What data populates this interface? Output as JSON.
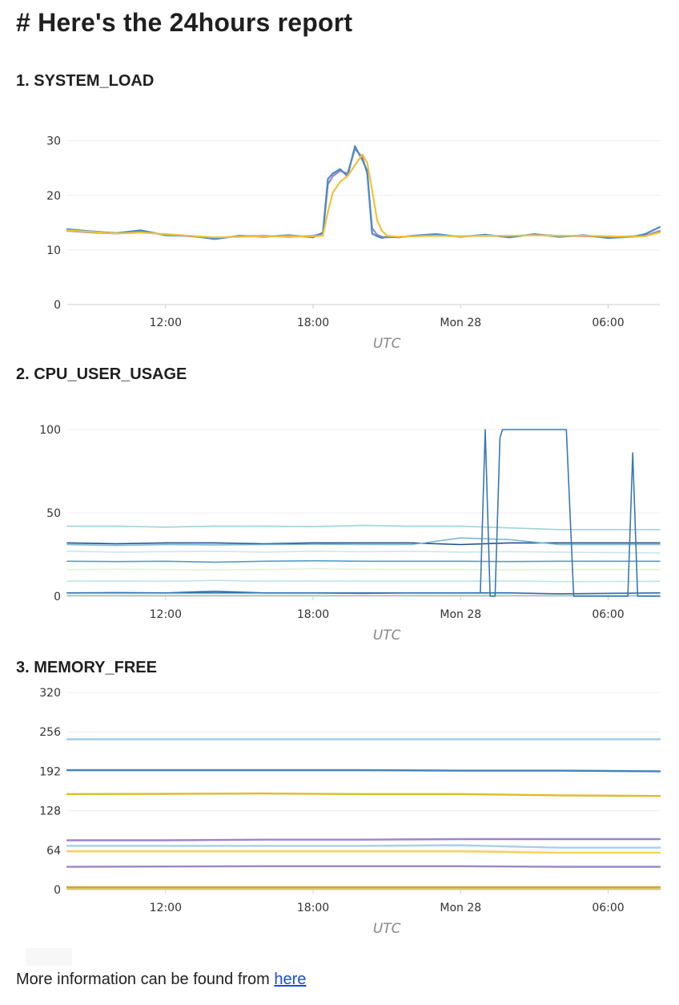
{
  "page": {
    "title": "# Here's the 24hours report",
    "footer_text": "More information can be found from ",
    "footer_link": "here"
  },
  "chart_data": [
    {
      "id": "system_load",
      "section_title": "1. SYSTEM_LOAD",
      "type": "line",
      "xlabel": "UTC",
      "xticks": [
        "12:00",
        "18:00",
        "Mon 28",
        "06:00"
      ],
      "yticks": [
        0,
        10,
        20,
        30
      ],
      "ylim": [
        0,
        32
      ],
      "xlim": [
        8.0,
        32.1
      ],
      "grid": true,
      "x": [
        8.0,
        9.0,
        10.0,
        11.0,
        12.0,
        13.0,
        14.0,
        15.0,
        16.0,
        17.0,
        18.0,
        18.4,
        18.6,
        18.8,
        19.1,
        19.4,
        19.7,
        20.0,
        20.2,
        20.4,
        20.6,
        20.8,
        21.0,
        21.5,
        22.0,
        23.0,
        24.0,
        25.0,
        26.0,
        27.0,
        28.0,
        29.0,
        30.0,
        31.0,
        31.5,
        32.1
      ],
      "series": [
        {
          "color": "#9b86c7",
          "values": [
            13.5,
            13.2,
            13.0,
            13.3,
            12.8,
            12.5,
            12.2,
            12.5,
            12.6,
            12.4,
            12.6,
            13.0,
            22.0,
            23.5,
            24.5,
            24.0,
            28.5,
            27.0,
            24.0,
            14.0,
            12.8,
            12.4,
            12.3,
            12.4,
            12.5,
            12.6,
            12.5,
            12.6,
            12.5,
            12.8,
            12.6,
            12.5,
            12.4,
            12.5,
            12.6,
            13.5
          ]
        },
        {
          "color": "#4a8cc4",
          "values": [
            13.8,
            13.4,
            13.1,
            13.6,
            12.7,
            12.6,
            12.0,
            12.6,
            12.4,
            12.7,
            12.3,
            13.2,
            23.0,
            24.0,
            24.8,
            23.5,
            29.0,
            26.5,
            24.5,
            13.0,
            12.5,
            12.2,
            12.4,
            12.3,
            12.6,
            12.9,
            12.4,
            12.8,
            12.3,
            12.9,
            12.4,
            12.7,
            12.2,
            12.4,
            12.9,
            14.2
          ]
        },
        {
          "color": "#f0c23a",
          "values": [
            13.6,
            13.3,
            13.0,
            13.2,
            12.9,
            12.6,
            12.3,
            12.4,
            12.5,
            12.5,
            12.5,
            12.6,
            17.0,
            20.5,
            22.5,
            23.5,
            25.5,
            27.5,
            26.0,
            21.0,
            15.5,
            13.5,
            12.6,
            12.4,
            12.5,
            12.6,
            12.5,
            12.6,
            12.6,
            12.7,
            12.6,
            12.6,
            12.5,
            12.4,
            12.5,
            13.2
          ]
        }
      ]
    },
    {
      "id": "cpu_user_usage",
      "section_title": "2. CPU_USER_USAGE",
      "type": "line",
      "xlabel": "UTC",
      "xticks": [
        "12:00",
        "18:00",
        "Mon 28",
        "06:00"
      ],
      "yticks": [
        0,
        50,
        100
      ],
      "ylim": [
        0,
        100
      ],
      "xlim": [
        8.0,
        32.1
      ],
      "grid": true,
      "flat_series": [
        {
          "color": "#9fd3d8",
          "values": [
            42,
            42,
            41.5,
            42,
            42,
            41.8,
            42.5,
            42,
            42,
            41,
            40,
            40
          ]
        },
        {
          "color": "#1e4f93",
          "values": [
            32,
            31.5,
            32,
            32,
            31.5,
            32,
            32,
            32,
            31,
            32,
            32,
            32
          ]
        },
        {
          "color": "#7bb8d6",
          "values": [
            31,
            30.5,
            31,
            30.8,
            31,
            31.2,
            31,
            31,
            35,
            34,
            31,
            31
          ]
        },
        {
          "color": "#cde7ea",
          "values": [
            27,
            26.5,
            26.8,
            27,
            26.5,
            27,
            26.7,
            27,
            26.5,
            26.8,
            26.5,
            26
          ]
        },
        {
          "color": "#4f9fc8",
          "values": [
            21,
            20.8,
            21,
            20.5,
            21,
            21.3,
            21,
            21,
            21,
            20.8,
            21,
            21
          ]
        },
        {
          "color": "#e4f2d8",
          "values": [
            16,
            16.2,
            16,
            15.8,
            16,
            16.5,
            16.2,
            16,
            16,
            15.8,
            16,
            16
          ]
        },
        {
          "color": "#bfe3e6",
          "values": [
            9,
            9.2,
            9,
            9.5,
            9,
            9.2,
            9,
            9,
            9,
            9.2,
            8.8,
            9
          ]
        },
        {
          "color": "#2b6cb0",
          "values": [
            2,
            2.2,
            2,
            3,
            2,
            2,
            1.8,
            2,
            2,
            2,
            1.5,
            2
          ]
        },
        {
          "color": "#a9c9b0",
          "values": [
            0.5,
            0.5,
            0.5,
            0.5,
            0.5,
            0.5,
            0.5,
            0.5,
            0.5,
            0.5,
            0.5,
            0.5
          ]
        }
      ],
      "flat_x": [
        8,
        10,
        12,
        14,
        16,
        18,
        20,
        22,
        24,
        26,
        28,
        32.1
      ],
      "spiky_series": {
        "color": "#3a78b0",
        "x": [
          8.0,
          24.8,
          25.0,
          25.2,
          25.4,
          25.6,
          25.7,
          26.0,
          28.0,
          28.3,
          28.6,
          30.5,
          30.8,
          31.0,
          31.2,
          32.1
        ],
        "values": [
          2,
          2,
          100,
          0,
          0,
          95,
          100,
          100,
          100,
          100,
          0,
          0,
          0,
          86,
          0,
          0
        ]
      }
    },
    {
      "id": "memory_free",
      "section_title": "3. MEMORY_FREE",
      "type": "line",
      "xlabel": "UTC",
      "xticks": [
        "12:00",
        "18:00",
        "Mon 28",
        "06:00"
      ],
      "yticks": [
        0,
        64,
        128,
        192,
        256,
        320
      ],
      "ylim": [
        0,
        320
      ],
      "xlim": [
        8.0,
        32.1
      ],
      "grid": true,
      "x": [
        8,
        12,
        16,
        20,
        24,
        28,
        32.1
      ],
      "series": [
        {
          "color": "#9dcbe8",
          "values": [
            244,
            244,
            244,
            244,
            244,
            244,
            244
          ]
        },
        {
          "color": "#3f84c2",
          "values": [
            194,
            194,
            194,
            194,
            193,
            193,
            192
          ]
        },
        {
          "color": "#e3b928",
          "values": [
            155,
            155.5,
            156,
            155,
            155,
            153,
            152
          ]
        },
        {
          "color": "#9b86c7",
          "values": [
            80,
            80,
            81,
            81,
            82,
            82,
            82
          ]
        },
        {
          "color": "#a9cfe3",
          "values": [
            71,
            71,
            71,
            71,
            72,
            68,
            68
          ]
        },
        {
          "color": "#f7d154",
          "values": [
            62,
            62,
            62,
            62,
            62,
            60,
            60
          ]
        },
        {
          "color": "#9b86c7",
          "values": [
            37,
            37.5,
            38,
            38,
            38,
            37,
            37
          ]
        },
        {
          "color": "#c8a73a",
          "values": [
            4,
            4,
            4,
            4,
            4,
            4,
            4
          ]
        },
        {
          "color": "#d9c56a",
          "values": [
            1,
            1,
            1,
            1,
            1,
            1,
            1
          ]
        }
      ]
    }
  ]
}
